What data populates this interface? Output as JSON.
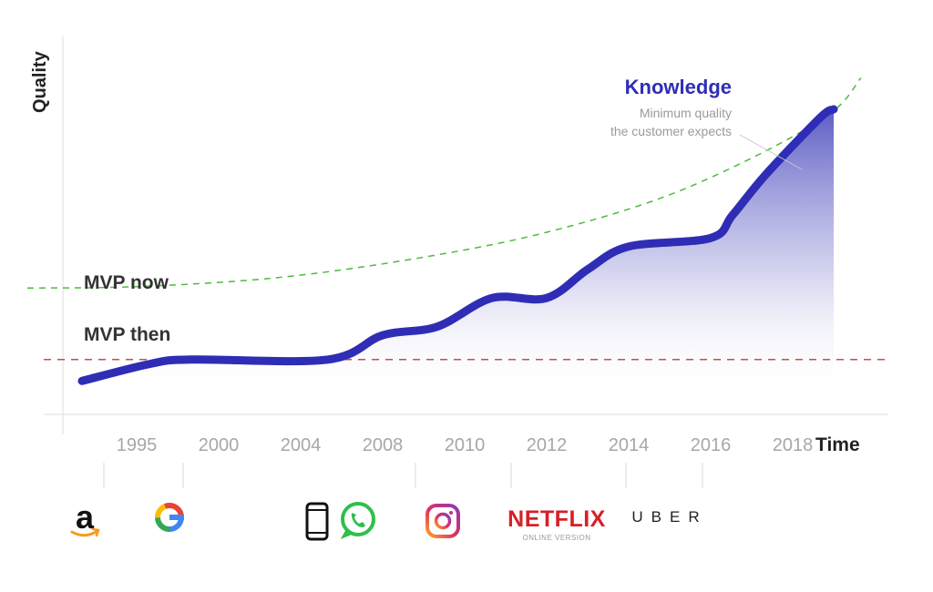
{
  "colors": {
    "main_line": "#2f2db5",
    "fill": "#4a4ac0",
    "mvp_now": "#4cbc3c",
    "mvp_then": "#c0504d",
    "knowledge": "#2f2db5"
  },
  "chart_data": {
    "type": "line",
    "title": "",
    "xlabel": "Time",
    "ylabel": "Quality",
    "xlim": [
      1992,
      2021
    ],
    "ylim": [
      0,
      100
    ],
    "x_ticks": [
      {
        "label": "1995",
        "x": 1995
      },
      {
        "label": "2000",
        "x": 1998
      },
      {
        "label": "2004",
        "x": 2001
      },
      {
        "label": "2008",
        "x": 2004
      },
      {
        "label": "2010",
        "x": 2007
      },
      {
        "label": "2012",
        "x": 2010
      },
      {
        "label": "2014",
        "x": 2013
      },
      {
        "label": "2016",
        "x": 2016
      },
      {
        "label": "2018",
        "x": 2019
      }
    ],
    "series": [
      {
        "name": "Knowledge",
        "x": [
          1993.0,
          1995.5,
          1997.0,
          2002.0,
          2004.0,
          2006.0,
          2008.0,
          2010.0,
          2011.5,
          2013.0,
          2016.0,
          2016.8,
          2018.0,
          2020.0,
          2020.5
        ],
        "values": [
          5,
          11,
          12.5,
          12.5,
          21,
          24,
          34,
          34,
          44,
          52,
          55,
          63,
          77,
          97,
          100
        ]
      },
      {
        "name": "Minimum quality the customer expects",
        "style": "dashed",
        "x": [
          1991.0,
          1995.0,
          2000.0,
          2005.0,
          2010.0,
          2015.0,
          2020.0,
          2021.5
        ],
        "values": [
          37.5,
          38,
          41,
          47.5,
          57,
          72,
          96,
          111
        ]
      }
    ],
    "reference_lines": [
      {
        "name": "MVP then",
        "y": 12.5,
        "style": "dashed"
      },
      {
        "name": "MVP now",
        "y": 37.5
      }
    ],
    "annotations": {
      "knowledge_label": "Knowledge",
      "expectation_line1": "Minimum quality",
      "expectation_line2": "the customer expects",
      "mvp_now": "MVP now",
      "mvp_then": "MVP then"
    },
    "milestones": [
      {
        "name": "amazon",
        "x": 1993.8
      },
      {
        "name": "google",
        "x": 1996.7
      },
      {
        "name": "iphone",
        "x": 2005.2
      },
      {
        "name": "instagram",
        "x": 2008.7
      },
      {
        "name": "netflix",
        "x": 2012.9
      },
      {
        "name": "uber",
        "x": 2015.7
      }
    ]
  },
  "logos": {
    "amazon": "a",
    "google": "G",
    "netflix": "NETFLIX",
    "netflix_sub": "ONLINE VERSION",
    "uber": "UBER"
  }
}
